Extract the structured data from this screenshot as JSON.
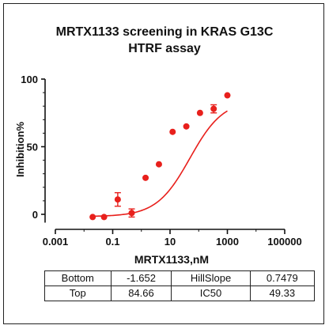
{
  "chart_data": {
    "type": "scatter",
    "title_line1": "MRTX1133 screening in KRAS G13C",
    "title_line2": "HTRF assay",
    "xlabel": "MRTX1133,nM",
    "ylabel": "Inhibition%",
    "x_scale": "log",
    "xlim": [
      0.001,
      100000
    ],
    "ylim": [
      -5,
      100
    ],
    "x_ticks": [
      0.001,
      0.1,
      10,
      1000,
      100000
    ],
    "x_tick_labels": [
      "0.001",
      "0.1",
      "10",
      "1000",
      "100000"
    ],
    "y_ticks": [
      0,
      50,
      100
    ],
    "y_tick_labels": [
      "0",
      "50",
      "100"
    ],
    "grid": false,
    "marker_color": "#e8201c",
    "curve_color": "#e8201c",
    "points": [
      {
        "x": 0.02,
        "y": -2,
        "err": 0
      },
      {
        "x": 0.05,
        "y": -2,
        "err": 0
      },
      {
        "x": 0.15,
        "y": 11,
        "err": 5
      },
      {
        "x": 0.46,
        "y": 1,
        "err": 3
      },
      {
        "x": 1.4,
        "y": 27,
        "err": 0
      },
      {
        "x": 4.1,
        "y": 37,
        "err": 0
      },
      {
        "x": 12.3,
        "y": 61,
        "err": 0
      },
      {
        "x": 37,
        "y": 65,
        "err": 0
      },
      {
        "x": 111,
        "y": 75,
        "err": 0
      },
      {
        "x": 333,
        "y": 78,
        "err": 3
      },
      {
        "x": 1000,
        "y": 88,
        "err": 0
      }
    ],
    "fit": {
      "bottom": -1.652,
      "top": 84.66,
      "hillslope": 0.7479,
      "ic50": 49.33
    }
  },
  "params_table": {
    "rows": [
      [
        {
          "label": "Bottom",
          "value": "-1.652"
        },
        {
          "label": "HillSlope",
          "value": "0.7479"
        }
      ],
      [
        {
          "label": "Top",
          "value": "84.66"
        },
        {
          "label": "IC50",
          "value": "49.33"
        }
      ]
    ]
  }
}
